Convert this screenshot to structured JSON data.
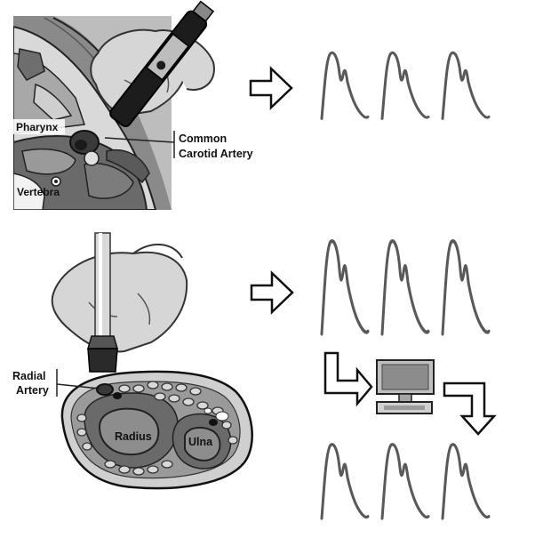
{
  "top_panel": {
    "label_pharynx": "Pharynx",
    "label_vertebra": "Vertebra",
    "label_artery_line1": "Common",
    "label_artery_line2": "Carotid Artery"
  },
  "bottom_panel": {
    "label_radial_line1": "Radial",
    "label_radial_line2": "Artery",
    "label_radius": "Radius",
    "label_ulna": "Ulna"
  },
  "icons": [
    "right-arrow-icon",
    "right-arrow-icon",
    "down-right-arrow-icon",
    "computer-icon",
    "right-down-arrow-icon"
  ],
  "colors": {
    "waveform": "#595959",
    "tissue_light": "#c9c9c9",
    "tissue_dark": "#4a4a4a",
    "outline": "#111111"
  }
}
